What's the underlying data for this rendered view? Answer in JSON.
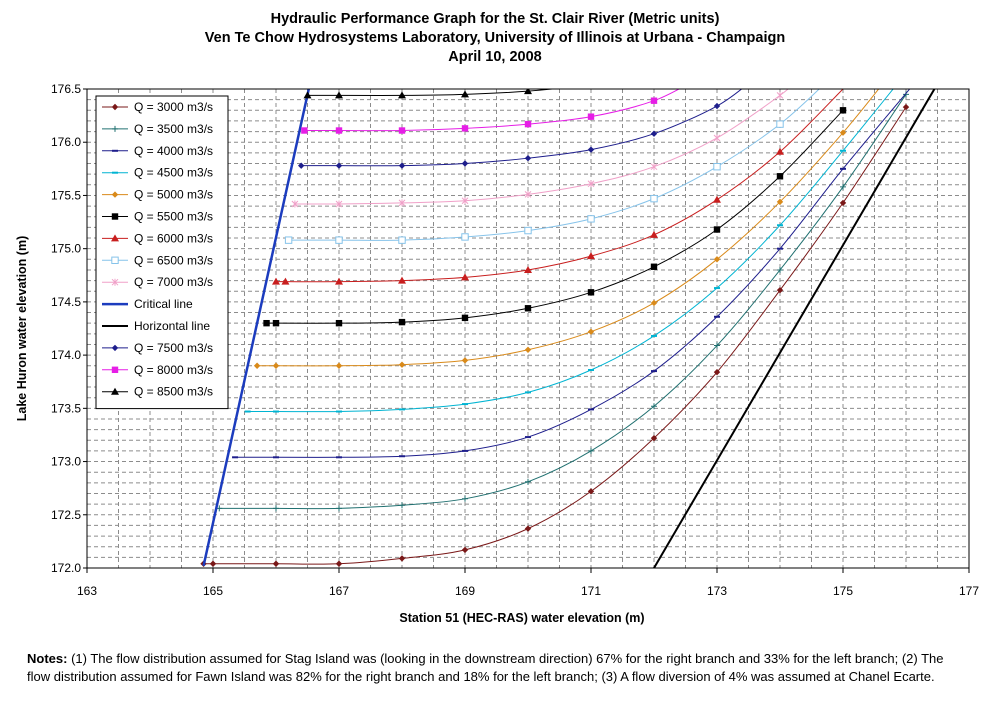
{
  "title": {
    "line1": "Hydraulic Performance Graph for the St. Clair River (Metric units)",
    "line2": "Ven Te Chow Hydrosystems Laboratory, University of Illinois at Urbana - Champaign",
    "line3": "April 10, 2008"
  },
  "notes": {
    "label": "Notes:",
    "text": " (1) The flow distribution assumed for Stag Island was (looking in the downstream direction) 67% for the right branch and 33% for the left branch; (2) The flow distribution assumed for Fawn  Island was 82% for the right branch and 18% for the left branch; (3) A flow diversion of 4% was assumed  at Chanel Ecarte."
  },
  "chart_data": {
    "type": "line",
    "xlabel": "Station 51 (HEC-RAS) water elevation (m)",
    "ylabel": "Lake Huron water elevation (m)",
    "xlim": [
      163,
      177
    ],
    "ylim": [
      172.0,
      176.5
    ],
    "xticks": [
      "163",
      "165",
      "167",
      "169",
      "171",
      "173",
      "175",
      "177"
    ],
    "yticks": [
      "172.0",
      "172.5",
      "173.0",
      "173.5",
      "174.0",
      "174.5",
      "175.0",
      "175.5",
      "176.0",
      "176.5"
    ],
    "grid": true,
    "legend_position": "top-left",
    "series": [
      {
        "name": "Q = 3000  m3/s",
        "color": "#7a1818",
        "marker": "diamond",
        "x": [
          164.85,
          165.0,
          166.0,
          167.0,
          168.0,
          169.0,
          170.0,
          171.0,
          172.0,
          173.0,
          174.0,
          175.0,
          176.0
        ],
        "y": [
          172.04,
          172.04,
          172.04,
          172.04,
          172.09,
          172.17,
          172.37,
          172.72,
          173.22,
          173.84,
          174.61,
          175.43,
          176.33
        ]
      },
      {
        "name": "Q = 3500 m3/s",
        "color": "#207070",
        "marker": "plus",
        "x": [
          165.1,
          166.0,
          167.0,
          168.0,
          169.0,
          170.0,
          171.0,
          172.0,
          173.0,
          174.0,
          175.0,
          176.0
        ],
        "y": [
          172.56,
          172.56,
          172.56,
          172.59,
          172.65,
          172.81,
          173.1,
          173.52,
          174.09,
          174.8,
          175.58,
          176.45
        ]
      },
      {
        "name": "Q = 4000  m3/s",
        "color": "#1e1e8c",
        "marker": "dash",
        "x": [
          165.35,
          166.0,
          167.0,
          168.0,
          169.0,
          170.0,
          171.0,
          172.0,
          173.0,
          174.0,
          175.0,
          176.2
        ],
        "y": [
          173.04,
          173.04,
          173.04,
          173.05,
          173.1,
          173.23,
          173.49,
          173.85,
          174.36,
          175.0,
          175.75,
          176.6
        ]
      },
      {
        "name": "Q = 4500  m3/s",
        "color": "#00b4d2",
        "marker": "dash",
        "x": [
          165.55,
          166.0,
          167.0,
          168.0,
          169.0,
          170.0,
          171.0,
          172.0,
          173.0,
          174.0,
          175.0,
          176.0
        ],
        "y": [
          173.47,
          173.47,
          173.47,
          173.49,
          173.54,
          173.65,
          173.86,
          174.18,
          174.63,
          175.22,
          175.92,
          176.65
        ]
      },
      {
        "name": "Q = 5000  m3/s",
        "color": "#d98a1a",
        "marker": "diamond",
        "x": [
          165.7,
          166.0,
          167.0,
          168.0,
          169.0,
          170.0,
          171.0,
          172.0,
          173.0,
          174.0,
          175.0,
          175.7
        ],
        "y": [
          173.9,
          173.9,
          173.9,
          173.91,
          173.95,
          174.05,
          174.22,
          174.49,
          174.9,
          175.44,
          176.09,
          176.6
        ]
      },
      {
        "name": "Q = 5500  m3/s",
        "color": "#000000",
        "marker": "square",
        "x": [
          165.85,
          166.0,
          167.0,
          168.0,
          169.0,
          170.0,
          171.0,
          172.0,
          173.0,
          174.0,
          175.0
        ],
        "y": [
          174.3,
          174.3,
          174.3,
          174.31,
          174.35,
          174.44,
          174.59,
          174.83,
          175.18,
          175.68,
          176.3
        ]
      },
      {
        "name": "Q = 6000 m3/s",
        "color": "#c81e1e",
        "marker": "triangle",
        "x": [
          166.0,
          166.15,
          167.0,
          168.0,
          169.0,
          170.0,
          171.0,
          172.0,
          173.0,
          174.0,
          175.0
        ],
        "y": [
          174.69,
          174.69,
          174.69,
          174.7,
          174.73,
          174.8,
          174.93,
          175.13,
          175.46,
          175.91,
          176.5
        ]
      },
      {
        "name": "Q = 6500  m3/s",
        "color": "#86c3ea",
        "marker": "square-open",
        "x": [
          166.2,
          167.0,
          168.0,
          169.0,
          170.0,
          171.0,
          172.0,
          173.0,
          174.0,
          174.8
        ],
        "y": [
          175.08,
          175.08,
          175.08,
          175.11,
          175.17,
          175.28,
          175.47,
          175.77,
          176.17,
          176.6
        ]
      },
      {
        "name": "Q = 7000  m3/s",
        "color": "#f0a0c8",
        "marker": "star",
        "x": [
          166.3,
          167.0,
          168.0,
          169.0,
          170.0,
          171.0,
          172.0,
          173.0,
          174.0,
          174.3
        ],
        "y": [
          175.42,
          175.42,
          175.43,
          175.45,
          175.51,
          175.61,
          175.77,
          176.04,
          176.44,
          176.6
        ]
      },
      {
        "name": "Critical line",
        "color": "#1c3cbe",
        "marker": "none",
        "lineWidth": 2.5,
        "x": [
          164.85,
          166.55
        ],
        "y": [
          172.02,
          176.58
        ]
      },
      {
        "name": "Horizontal line",
        "color": "#000000",
        "marker": "none",
        "lineWidth": 2,
        "x": [
          172.0,
          176.55
        ],
        "y": [
          172.0,
          176.6
        ]
      },
      {
        "name": "Q = 7500  m3/s",
        "color": "#1e1e8c",
        "marker": "diamond",
        "x": [
          166.4,
          167.0,
          168.0,
          169.0,
          170.0,
          171.0,
          172.0,
          173.0,
          173.6
        ],
        "y": [
          175.78,
          175.78,
          175.78,
          175.8,
          175.85,
          175.93,
          176.08,
          176.34,
          176.6
        ]
      },
      {
        "name": "Q = 8000  m3/s",
        "color": "#e61ee6",
        "marker": "square",
        "x": [
          166.45,
          167.0,
          168.0,
          169.0,
          170.0,
          171.0,
          172.0,
          172.7
        ],
        "y": [
          176.11,
          176.11,
          176.11,
          176.13,
          176.17,
          176.24,
          176.39,
          176.6
        ]
      },
      {
        "name": "Q = 8500  m3/s",
        "color": "#000000",
        "marker": "triangle",
        "x": [
          166.5,
          167.0,
          168.0,
          169.0,
          170.0,
          171.2
        ],
        "y": [
          176.44,
          176.44,
          176.44,
          176.45,
          176.48,
          176.55
        ]
      }
    ]
  }
}
